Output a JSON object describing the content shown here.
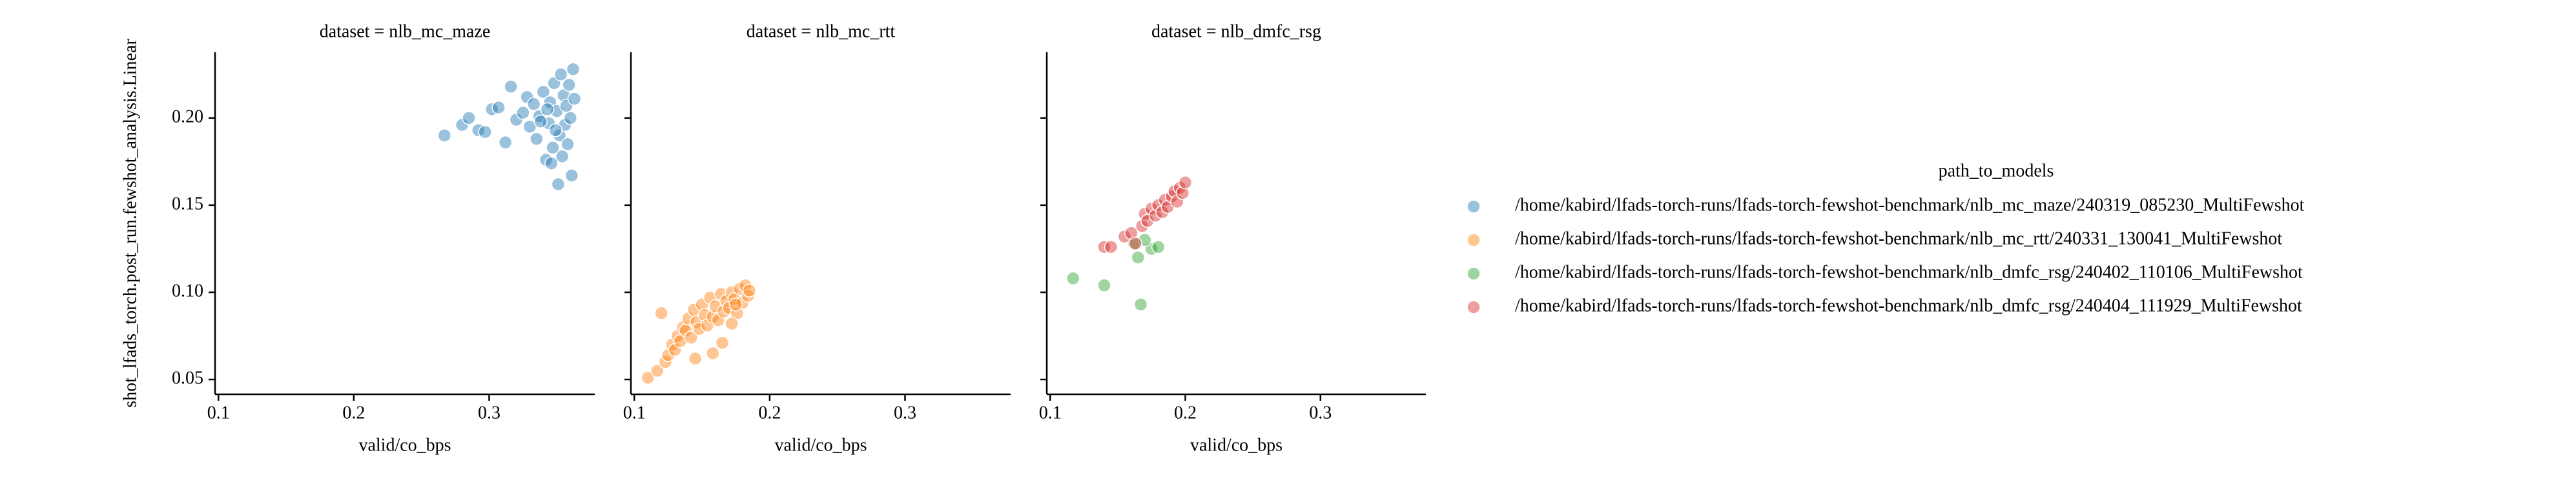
{
  "chart_data": [
    {
      "type": "scatter",
      "title": "dataset = nlb_mc_maze",
      "xlabel": "valid/co_bps",
      "ylabel": "shot_lfads_torch.post_run.fewshot_analysis.Linear",
      "xlim": [
        0.0975,
        0.378
      ],
      "xticks": [
        0.1,
        0.2,
        0.3
      ],
      "ylim": [
        0.0415,
        0.2377
      ],
      "yticks": [
        0.05,
        {
          "value": 0.1,
          "label": "0.10"
        },
        0.15,
        {
          "value": 0.2,
          "label": "0.20"
        }
      ],
      "series": [
        {
          "name": "/home/kabird/lfads-torch-runs/lfads-torch-fewshot-benchmark/nlb_mc_maze/240319_085230_MultiFewshot",
          "color": "#1f77b4",
          "x": [
            0.267,
            0.28,
            0.285,
            0.292,
            0.297,
            0.302,
            0.307,
            0.312,
            0.316,
            0.32,
            0.325,
            0.328,
            0.33,
            0.333,
            0.335,
            0.337,
            0.34,
            0.342,
            0.344,
            0.345,
            0.347,
            0.348,
            0.35,
            0.351,
            0.352,
            0.353,
            0.354,
            0.355,
            0.356,
            0.357,
            0.358,
            0.359,
            0.36,
            0.361,
            0.362,
            0.363,
            0.349,
            0.346,
            0.343,
            0.338
          ],
          "values": [
            0.19,
            0.196,
            0.2,
            0.193,
            0.192,
            0.205,
            0.206,
            0.186,
            0.218,
            0.199,
            0.203,
            0.212,
            0.195,
            0.208,
            0.188,
            0.201,
            0.215,
            0.176,
            0.197,
            0.209,
            0.183,
            0.22,
            0.204,
            0.162,
            0.19,
            0.225,
            0.178,
            0.213,
            0.196,
            0.207,
            0.185,
            0.219,
            0.2,
            0.167,
            0.228,
            0.211,
            0.193,
            0.174,
            0.205,
            0.198
          ]
        }
      ]
    },
    {
      "type": "scatter",
      "title": "dataset = nlb_mc_rtt",
      "xlabel": "valid/co_bps",
      "sharey": true,
      "xlim": [
        0.0975,
        0.378
      ],
      "xticks": [
        0.1,
        0.2,
        0.3
      ],
      "series": [
        {
          "name": "/home/kabird/lfads-torch-runs/lfads-torch-fewshot-benchmark/nlb_mc_rtt/240331_130041_MultiFewshot",
          "color": "#ff7f0e",
          "x": [
            0.11,
            0.117,
            0.12,
            0.123,
            0.125,
            0.128,
            0.13,
            0.132,
            0.134,
            0.136,
            0.138,
            0.14,
            0.142,
            0.144,
            0.146,
            0.148,
            0.15,
            0.152,
            0.154,
            0.156,
            0.158,
            0.16,
            0.162,
            0.164,
            0.166,
            0.168,
            0.17,
            0.172,
            0.174,
            0.176,
            0.178,
            0.18,
            0.182,
            0.184,
            0.185,
            0.158,
            0.145,
            0.172,
            0.165,
            0.175
          ],
          "values": [
            0.051,
            0.055,
            0.088,
            0.06,
            0.064,
            0.07,
            0.067,
            0.075,
            0.072,
            0.08,
            0.078,
            0.085,
            0.074,
            0.09,
            0.083,
            0.079,
            0.093,
            0.087,
            0.081,
            0.097,
            0.086,
            0.092,
            0.084,
            0.099,
            0.089,
            0.095,
            0.091,
            0.1,
            0.096,
            0.088,
            0.102,
            0.094,
            0.104,
            0.098,
            0.101,
            0.065,
            0.062,
            0.082,
            0.071,
            0.093
          ]
        }
      ]
    },
    {
      "type": "scatter",
      "title": "dataset = nlb_dmfc_rsg",
      "xlabel": "valid/co_bps",
      "sharey": true,
      "xlim": [
        0.0975,
        0.378
      ],
      "xticks": [
        0.1,
        0.2,
        0.3
      ],
      "series": [
        {
          "name": "/home/kabird/lfads-torch-runs/lfads-torch-fewshot-benchmark/nlb_dmfc_rsg/240402_110106_MultiFewshot",
          "color": "#2ca02c",
          "x": [
            0.117,
            0.14,
            0.167,
            0.165,
            0.175,
            0.18,
            0.162,
            0.17
          ],
          "values": [
            0.108,
            0.104,
            0.093,
            0.12,
            0.125,
            0.126,
            0.128,
            0.13
          ]
        },
        {
          "name": "/home/kabird/lfads-torch-runs/lfads-torch-fewshot-benchmark/nlb_dmfc_rsg/240404_111929_MultiFewshot",
          "color": "#d62728",
          "x": [
            0.14,
            0.145,
            0.155,
            0.16,
            0.163,
            0.168,
            0.17,
            0.172,
            0.175,
            0.178,
            0.18,
            0.183,
            0.185,
            0.187,
            0.19,
            0.192,
            0.194,
            0.196,
            0.198,
            0.2
          ],
          "values": [
            0.126,
            0.126,
            0.132,
            0.134,
            0.128,
            0.138,
            0.145,
            0.141,
            0.148,
            0.144,
            0.15,
            0.146,
            0.153,
            0.149,
            0.155,
            0.158,
            0.152,
            0.16,
            0.157,
            0.163
          ]
        }
      ]
    }
  ],
  "legend": {
    "title": "path_to_models"
  }
}
